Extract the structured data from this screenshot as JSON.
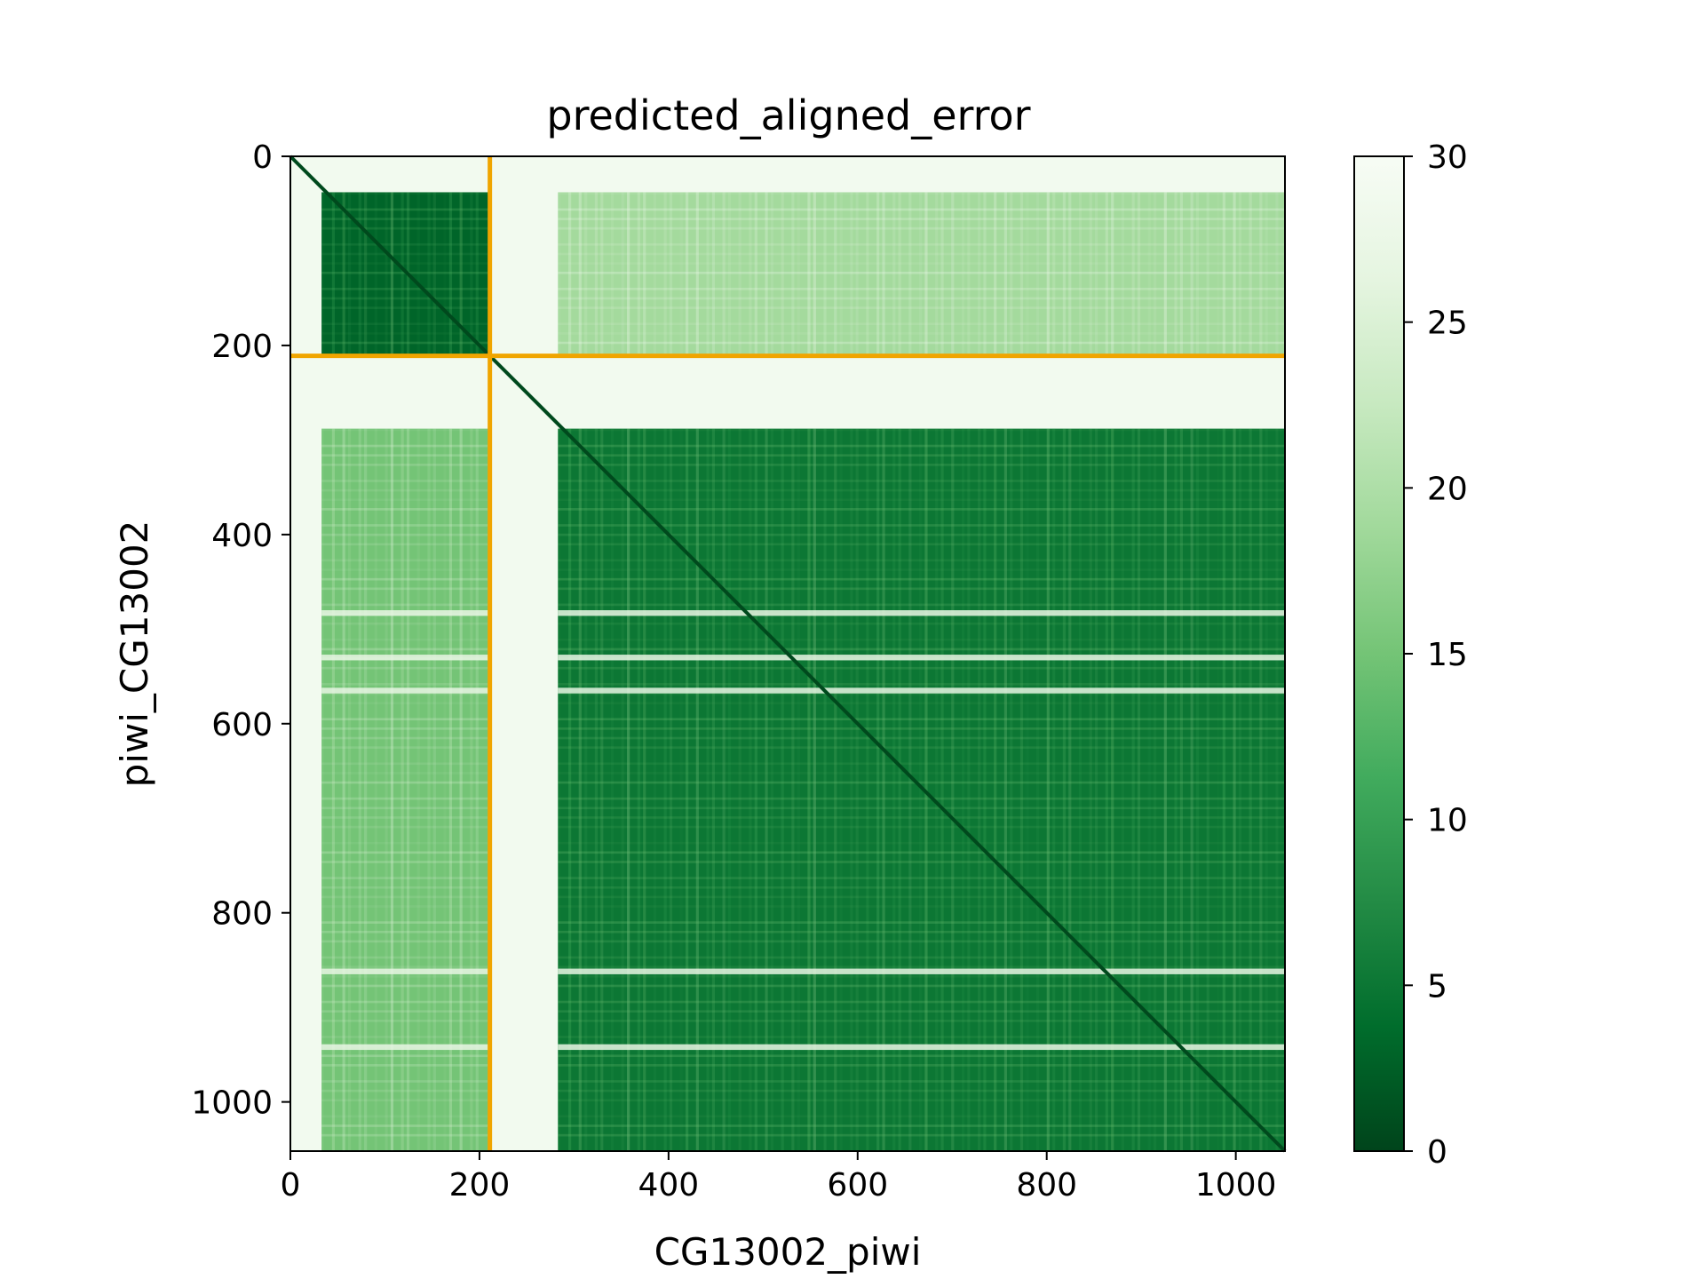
{
  "chart_data": {
    "type": "heatmap",
    "title": "predicted_aligned_error",
    "xlabel": "CG13002_piwi",
    "ylabel": "piwi_CG13002",
    "xlim": [
      0,
      1052
    ],
    "ylim": [
      1052,
      0
    ],
    "x_ticks": [
      0,
      200,
      400,
      600,
      800,
      1000
    ],
    "y_ticks": [
      0,
      200,
      400,
      600,
      800,
      1000
    ],
    "colormap": "Greens_r",
    "colorbar": {
      "min": 0,
      "max": 30,
      "ticks": [
        0,
        5,
        10,
        15,
        20,
        25,
        30
      ]
    },
    "chain_boundary": 211,
    "boundary_color": "#f0a500",
    "chains": [
      {
        "name": "CG13002",
        "start": 0,
        "end": 211
      },
      {
        "name": "piwi",
        "start": 211,
        "end": 1052
      }
    ],
    "regions": [
      {
        "name": "CG13002-intra",
        "x": [
          33,
          211
        ],
        "y": [
          38,
          211
        ],
        "pae": 3
      },
      {
        "name": "CG13002-to-piwi",
        "x": [
          283,
          1052
        ],
        "y": [
          38,
          211
        ],
        "pae": 19
      },
      {
        "name": "piwi-to-CG13002",
        "x": [
          33,
          211
        ],
        "y": [
          288,
          1052
        ],
        "pae": 15
      },
      {
        "name": "piwi-intra",
        "x": [
          283,
          1052
        ],
        "y": [
          288,
          1052
        ],
        "pae": 5
      }
    ],
    "disordered_ranges": [
      [
        0,
        33
      ],
      [
        211,
        283
      ]
    ],
    "high_error_rows": [
      483,
      530,
      565,
      862,
      942
    ],
    "diagonal_pae": 0.5
  }
}
